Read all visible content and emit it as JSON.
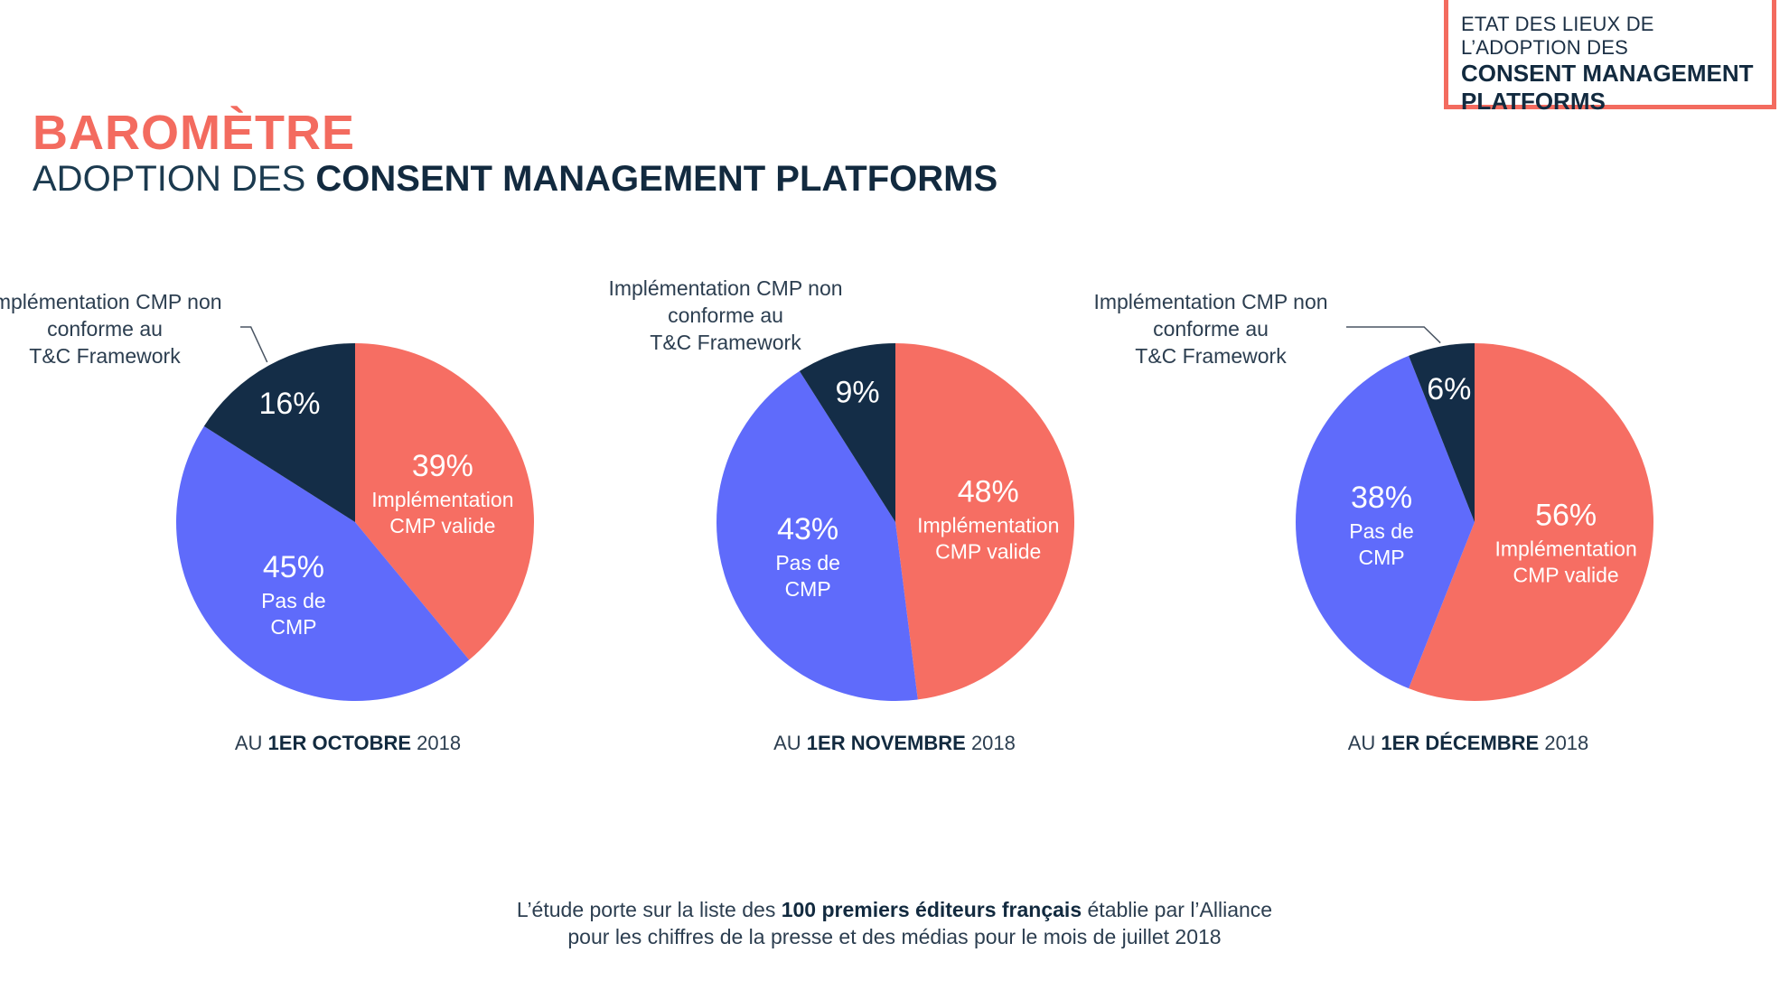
{
  "header_box": {
    "line1": "ETAT DES LIEUX DE L’ADOPTION DES",
    "line2": "CONSENT MANAGEMENT",
    "line3": "PLATFORMS"
  },
  "title": {
    "main": "BAROMÈTRE",
    "sub_light": "ADOPTION DES ",
    "sub_bold": "CONSENT MANAGEMENT PLATFORMS"
  },
  "colors": {
    "valid": "#f66e63",
    "no_cmp": "#5f6bfb",
    "non_conform": "#142d47",
    "accent": "#f36b5f"
  },
  "chart_data": [
    {
      "type": "pie",
      "caption_pre": "AU ",
      "caption_bold": "1ER OCTOBRE",
      "caption_post": " 2018",
      "slices": [
        {
          "key": "valid",
          "value": 39,
          "value_label": "39%",
          "label_lines": [
            "Implémentation",
            "CMP valide"
          ]
        },
        {
          "key": "no_cmp",
          "value": 45,
          "value_label": "45%",
          "label_lines": [
            "Pas de",
            "CMP"
          ]
        },
        {
          "key": "non_conform",
          "value": 16,
          "value_label": "16%",
          "label_lines": []
        }
      ],
      "callout_lines": [
        "Implémentation CMP non",
        "conforme au",
        "T&C Framework"
      ]
    },
    {
      "type": "pie",
      "caption_pre": "AU ",
      "caption_bold": "1ER NOVEMBRE",
      "caption_post": " 2018",
      "slices": [
        {
          "key": "valid",
          "value": 48,
          "value_label": "48%",
          "label_lines": [
            "Implémentation",
            "CMP valide"
          ]
        },
        {
          "key": "no_cmp",
          "value": 43,
          "value_label": "43%",
          "label_lines": [
            "Pas de",
            "CMP"
          ]
        },
        {
          "key": "non_conform",
          "value": 9,
          "value_label": "9%",
          "label_lines": []
        }
      ],
      "callout_lines": [
        "Implémentation CMP non",
        "conforme au",
        "T&C Framework"
      ]
    },
    {
      "type": "pie",
      "caption_pre": "AU ",
      "caption_bold": "1ER DÉCEMBRE",
      "caption_post": " 2018",
      "slices": [
        {
          "key": "valid",
          "value": 56,
          "value_label": "56%",
          "label_lines": [
            "Implémentation",
            "CMP valide"
          ]
        },
        {
          "key": "no_cmp",
          "value": 38,
          "value_label": "38%",
          "label_lines": [
            "Pas de",
            "CMP"
          ]
        },
        {
          "key": "non_conform",
          "value": 6,
          "value_label": "6%",
          "label_lines": []
        }
      ],
      "callout_lines": [
        "Implémentation CMP non",
        "conforme au",
        "T&C Framework"
      ]
    }
  ],
  "footer": {
    "line1_pre": "L’étude porte sur la liste des ",
    "line1_bold": "100 premiers éditeurs français",
    "line1_post": " établie par l’Alliance",
    "line2": "pour les chiffres de la presse et des médias pour le mois de juillet 2018"
  }
}
